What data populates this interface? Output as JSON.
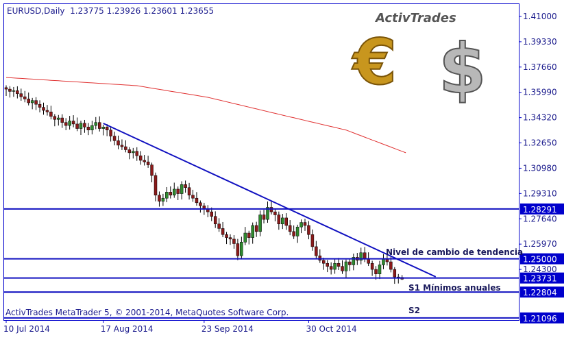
{
  "header": {
    "symbol_line": "EURUSD,Daily  1.23775 1.23926 1.23601 1.23655"
  },
  "logo": {
    "text": "ActivTrades",
    "symbols": [
      "€",
      "$"
    ]
  },
  "copyright": "ActivTrades MetaTrader 5, © 2001-2014, MetaQuotes Software Corp.",
  "colors": {
    "frame": "#0000cc",
    "bull": "#2e8b2e",
    "bear": "#8b1a1a",
    "ma": "#e03030",
    "lines": "#1010c0",
    "tag_bg": "#0000cc"
  },
  "chart_data": {
    "type": "candlestick",
    "symbol": "EURUSD",
    "timeframe": "Daily",
    "last_ohlc": {
      "open": 1.23775,
      "high": 1.23926,
      "low": 1.23601,
      "close": 1.23655
    },
    "ylim": [
      1.21,
      1.419
    ],
    "y_ticks": [
      "1.41000",
      "1.39330",
      "1.37660",
      "1.35990",
      "1.34320",
      "1.32650",
      "1.30980",
      "1.29310",
      "1.27640",
      "1.25970",
      "1.24300"
    ],
    "x_ticks": [
      {
        "label": "10 Jul 2014",
        "index": 0
      },
      {
        "label": "17 Aug 2014",
        "index": 26
      },
      {
        "label": "23 Sep 2014",
        "index": 53
      },
      {
        "label": "30 Oct 2014",
        "index": 81
      }
    ],
    "closes": [
      1.362,
      1.3605,
      1.361,
      1.359,
      1.357,
      1.3555,
      1.353,
      1.3545,
      1.352,
      1.35,
      1.348,
      1.347,
      1.344,
      1.342,
      1.343,
      1.34,
      1.338,
      1.341,
      1.339,
      1.336,
      1.3395,
      1.337,
      1.335,
      1.338,
      1.34,
      1.336,
      1.337,
      1.335,
      1.331,
      1.328,
      1.325,
      1.324,
      1.322,
      1.32,
      1.321,
      1.318,
      1.315,
      1.314,
      1.312,
      1.305,
      1.292,
      1.288,
      1.29,
      1.294,
      1.292,
      1.296,
      1.293,
      1.299,
      1.297,
      1.292,
      1.29,
      1.287,
      1.285,
      1.283,
      1.281,
      1.278,
      1.273,
      1.27,
      1.266,
      1.264,
      1.263,
      1.26,
      1.252,
      1.261,
      1.267,
      1.264,
      1.272,
      1.268,
      1.279,
      1.276,
      1.284,
      1.281,
      1.279,
      1.273,
      1.277,
      1.272,
      1.268,
      1.265,
      1.271,
      1.274,
      1.272,
      1.266,
      1.258,
      1.252,
      1.249,
      1.247,
      1.245,
      1.243,
      1.247,
      1.245,
      1.242,
      1.248,
      1.246,
      1.251,
      1.249,
      1.254,
      1.25,
      1.247,
      1.243,
      1.24,
      1.246,
      1.25,
      1.248,
      1.243,
      1.238,
      1.23775,
      1.23655
    ],
    "moving_average": [
      {
        "index": 0,
        "value": 1.3697
      },
      {
        "index": 35,
        "value": 1.3643
      },
      {
        "index": 54,
        "value": 1.3566
      },
      {
        "index": 72,
        "value": 1.346
      },
      {
        "index": 91,
        "value": 1.335
      },
      {
        "index": 107,
        "value": 1.32
      }
    ],
    "trendline": {
      "from": {
        "index": 26,
        "value": 1.3394
      },
      "to": {
        "index": 115,
        "value": 1.2381
      }
    },
    "levels": [
      {
        "value": 1.28291,
        "tag": "1.28291",
        "label": ""
      },
      {
        "value": 1.25,
        "tag": "1.25000",
        "label": "Nivel de cambio de tendencia"
      },
      {
        "value": 1.23731,
        "tag": "1.23731",
        "label": ""
      },
      {
        "value": 1.22804,
        "tag": "1.22804",
        "label": "S1 Mínimos anuales"
      },
      {
        "value": 1.21096,
        "tag": "1.21096",
        "label": "S2"
      }
    ]
  }
}
